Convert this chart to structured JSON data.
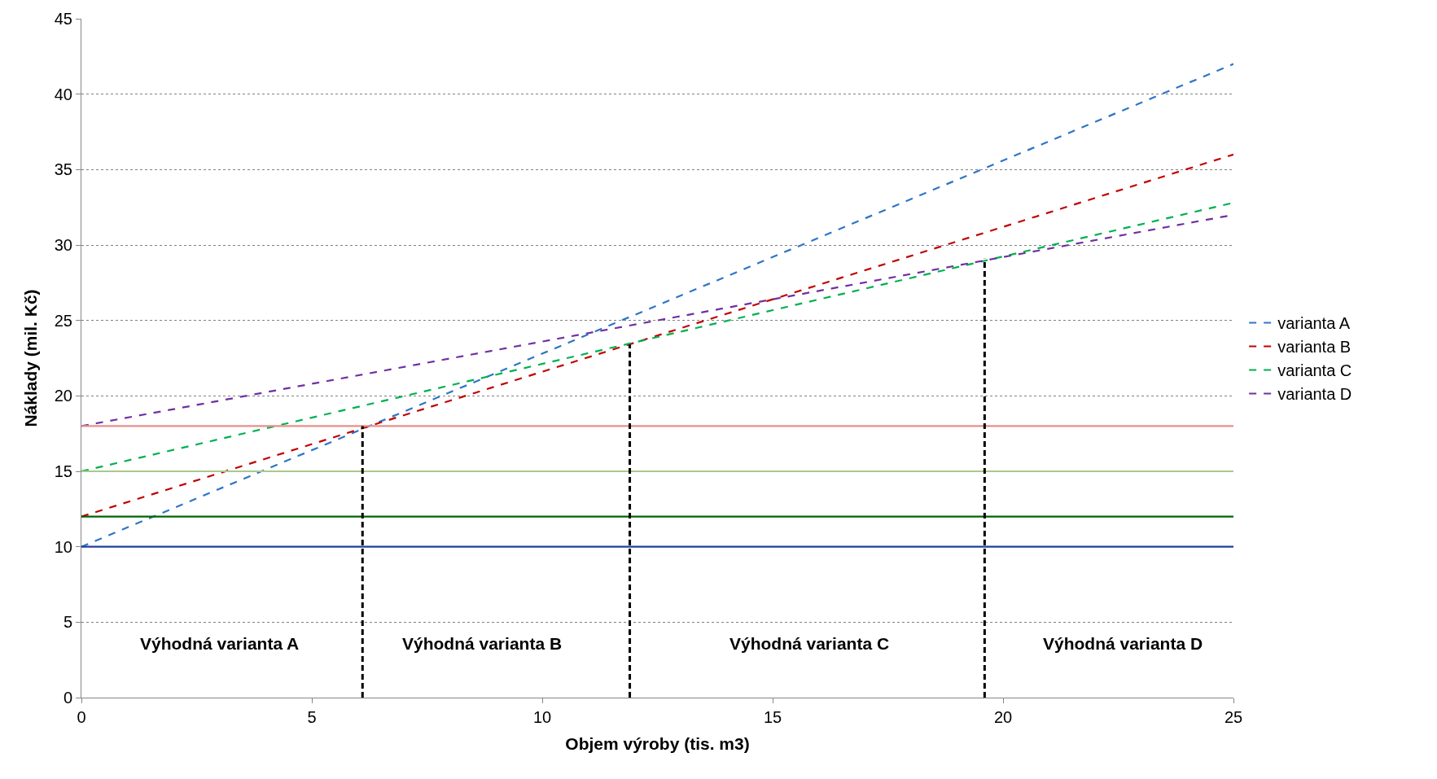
{
  "chart_data": {
    "type": "line",
    "xlabel": "Objem výroby (tis. m3)",
    "ylabel": "Náklady (mil. Kč)",
    "xlim": [
      0,
      25
    ],
    "xticks": [
      0,
      5,
      10,
      15,
      20,
      25
    ],
    "ylim": [
      0,
      45
    ],
    "yticks": [
      0,
      5,
      10,
      15,
      20,
      25,
      30,
      35,
      40,
      45
    ],
    "grid": "y",
    "legend": "right",
    "marker": "none",
    "series": [
      {
        "name": "varianta A",
        "color": "#2e75c6",
        "x": [
          0,
          25
        ],
        "values": [
          10,
          42
        ],
        "line_style": "dashed"
      },
      {
        "name": "varianta B",
        "color": "#c00000",
        "x": [
          0,
          25
        ],
        "values": [
          12,
          36
        ],
        "line_style": "dashed"
      },
      {
        "name": "varianta C",
        "color": "#00b050",
        "x": [
          0,
          25
        ],
        "values": [
          15,
          32.8
        ],
        "line_style": "dashed"
      },
      {
        "name": "varianta D",
        "color": "#7030a0",
        "x": [
          0,
          25
        ],
        "values": [
          18,
          32
        ],
        "line_style": "dashed"
      },
      {
        "color": "#e6908a",
        "x": [
          0,
          25
        ],
        "values": [
          18,
          18
        ],
        "line_style": "solid"
      },
      {
        "color": "#a9c98e",
        "x": [
          0,
          25
        ],
        "values": [
          15,
          15
        ],
        "line_style": "solid"
      },
      {
        "color": "#006400",
        "x": [
          0,
          25
        ],
        "values": [
          12,
          12
        ],
        "line_style": "solid"
      },
      {
        "color": "#1f3fa0",
        "x": [
          0,
          25
        ],
        "values": [
          10,
          10
        ],
        "line_style": "solid"
      },
      {
        "color": "#000000",
        "x": [
          6.1,
          6.1
        ],
        "values": [
          0,
          18
        ],
        "line_style": "dashed"
      },
      {
        "color": "#000000",
        "x": [
          11.9,
          11.9
        ],
        "values": [
          0,
          23.4
        ],
        "line_style": "dashed"
      },
      {
        "color": "#000000",
        "x": [
          19.6,
          19.6
        ],
        "values": [
          0,
          29.1
        ],
        "line_style": "dashed"
      }
    ],
    "annotations": [
      "Výhodná varianta A",
      "Výhodná varianta B",
      "Výhodná varianta C",
      "Výhodná varianta D"
    ]
  }
}
